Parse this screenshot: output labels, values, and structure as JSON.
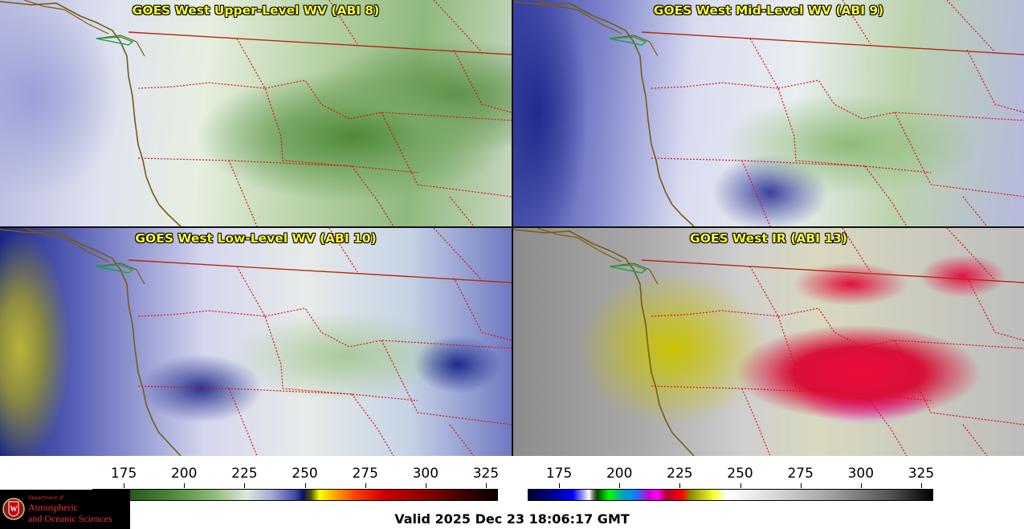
{
  "panels": [
    {
      "title": "GOES West Upper-Level WV (ABI 8)",
      "band": "ABI 8"
    },
    {
      "title": "GOES West Mid-Level WV (ABI 9)",
      "band": "ABI 9"
    },
    {
      "title": "GOES West Low-Level WV (ABI 10)",
      "band": "ABI 10"
    },
    {
      "title": "GOES West IR (ABI 13)",
      "band": "ABI 13"
    }
  ],
  "colorbars": {
    "wv": {
      "ticks": [
        "175",
        "200",
        "225",
        "250",
        "275",
        "300",
        "325"
      ],
      "range": [
        162,
        330
      ]
    },
    "ir": {
      "ticks": [
        "175",
        "200",
        "225",
        "250",
        "275",
        "300",
        "325"
      ],
      "range": [
        162,
        330
      ]
    }
  },
  "logo": {
    "dept": "Department of",
    "line1": "Atmospheric",
    "line2": "and Oceanic Sciences",
    "emblem": "W"
  },
  "valid_time": "Valid 2025 Dec 23 18:06:17 GMT",
  "colors": {
    "title_text": "#ffff33",
    "coastline": "#7a5a10",
    "state_borders": "#e01010",
    "lakes": "#19a04a"
  }
}
